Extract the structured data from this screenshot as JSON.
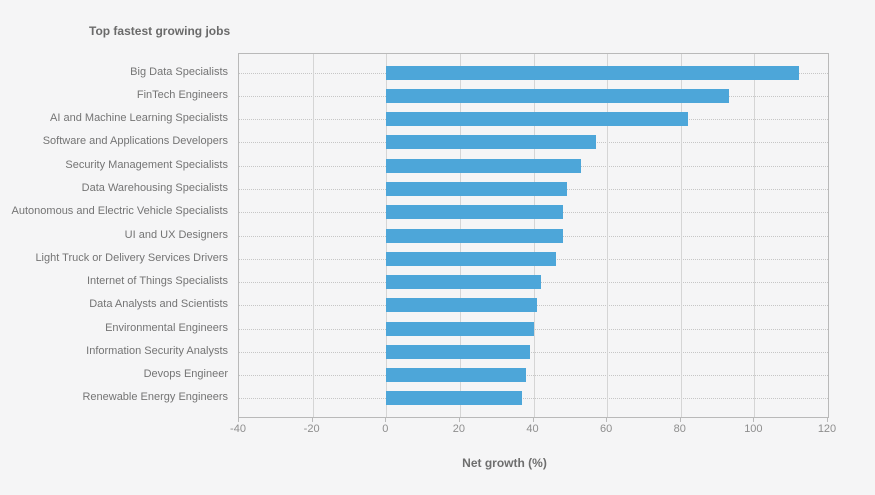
{
  "title": "Top fastest growing jobs",
  "axis_title": "Net growth (%)",
  "colors": {
    "background": "#F5F5F6",
    "bar": "#4DA6D9",
    "plot_border": "#B9B9B9",
    "gridline": "#D5D5D5",
    "dotted_line": "#C6C6C6",
    "title_text": "#6A6A6A",
    "category_label": "#747474",
    "tick_label": "#8E8E8E",
    "axis_title_text": "#6E6E6E"
  },
  "chart_data": {
    "type": "bar",
    "orientation": "horizontal",
    "title": "Top fastest growing jobs",
    "xlabel": "Net growth (%)",
    "ylabel": "",
    "xlim": [
      -40,
      120
    ],
    "xticks": [
      -40,
      -20,
      0,
      20,
      40,
      60,
      80,
      100,
      120
    ],
    "grid": true,
    "legend": false,
    "gridline_style": "solid-vertical, dotted-horizontal",
    "bar_color": "#4DA6D9",
    "categories": [
      "Big Data Specialists",
      "FinTech Engineers",
      "AI and Machine Learning Specialists",
      "Software and Applications Developers",
      "Security Management Specialists",
      "Data Warehousing Specialists",
      "Autonomous and Electric Vehicle Specialists",
      "UI and UX Designers",
      "Light Truck or Delivery Services Drivers",
      "Internet of Things Specialists",
      "Data Analysts and Scientists",
      "Environmental Engineers",
      "Information Security Analysts",
      "Devops Engineer",
      "Renewable Energy Engineers"
    ],
    "values": [
      112,
      93,
      82,
      57,
      53,
      49,
      48,
      48,
      46,
      42,
      41,
      40,
      39,
      38,
      37
    ]
  }
}
